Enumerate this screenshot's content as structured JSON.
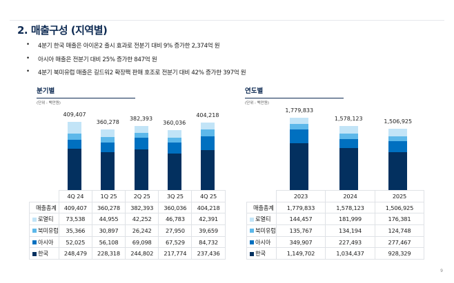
{
  "title": "2. 매출구성 (지역별)",
  "bullets": [
    "4분기 한국 매출은 아이온2 출시 효과로 전분기 대비 9% 증가한 2,374억 원",
    "아시아 매출은 전분기 대비 25% 증가한 847억 원",
    "4분기 북미유럽 매출은 길드워2 확장팩 판매 호조로 전분기 대비 42% 증가한 397억 원"
  ],
  "page_number": "9",
  "colors": {
    "한국": "#03305f",
    "아시아": "#0070c0",
    "북미유럽": "#5db8ea",
    "로열티": "#c2e4f7"
  },
  "chart_data": [
    {
      "type": "bar",
      "stacked": true,
      "title": "분기별",
      "unit": "(단위 : 백만원)",
      "categories": [
        "4Q 24",
        "1Q 25",
        "2Q 25",
        "3Q 25",
        "4Q 25"
      ],
      "total_label": "매출총계",
      "totals": [
        "409,407",
        "360,278",
        "382,393",
        "360,036",
        "404,218"
      ],
      "series": [
        {
          "name": "한국",
          "values": [
            248479,
            228318,
            244802,
            217774,
            237436
          ],
          "labels": [
            "248,479",
            "228,318",
            "244,802",
            "217,774",
            "237,436"
          ]
        },
        {
          "name": "아시아",
          "values": [
            52025,
            56108,
            69098,
            67529,
            84732
          ],
          "labels": [
            "52,025",
            "56,108",
            "69,098",
            "67,529",
            "84,732"
          ]
        },
        {
          "name": "북미유럽",
          "values": [
            35366,
            30897,
            26242,
            27950,
            39659
          ],
          "labels": [
            "35,366",
            "30,897",
            "26,242",
            "27,950",
            "39,659"
          ]
        },
        {
          "name": "로열티",
          "values": [
            73538,
            44955,
            42252,
            46783,
            42391
          ],
          "labels": [
            "73,538",
            "44,955",
            "42,252",
            "46,783",
            "42,391"
          ]
        }
      ]
    },
    {
      "type": "bar",
      "stacked": true,
      "title": "연도별",
      "unit": "(단위 : 백만원)",
      "categories": [
        "2023",
        "2024",
        "2025"
      ],
      "total_label": "매출총계",
      "totals": [
        "1,779,833",
        "1,578,123",
        "1,506,925"
      ],
      "series": [
        {
          "name": "한국",
          "values": [
            1149702,
            1034437,
            928329
          ],
          "labels": [
            "1,149,702",
            "1,034,437",
            "928,329"
          ]
        },
        {
          "name": "아시아",
          "values": [
            349907,
            227493,
            277467
          ],
          "labels": [
            "349,907",
            "227,493",
            "277,467"
          ]
        },
        {
          "name": "북미유럽",
          "values": [
            135767,
            134194,
            124748
          ],
          "labels": [
            "135,767",
            "134,194",
            "124,748"
          ]
        },
        {
          "name": "로열티",
          "values": [
            144457,
            181999,
            176381
          ],
          "labels": [
            "144,457",
            "181,999",
            "176,381"
          ]
        }
      ]
    }
  ]
}
